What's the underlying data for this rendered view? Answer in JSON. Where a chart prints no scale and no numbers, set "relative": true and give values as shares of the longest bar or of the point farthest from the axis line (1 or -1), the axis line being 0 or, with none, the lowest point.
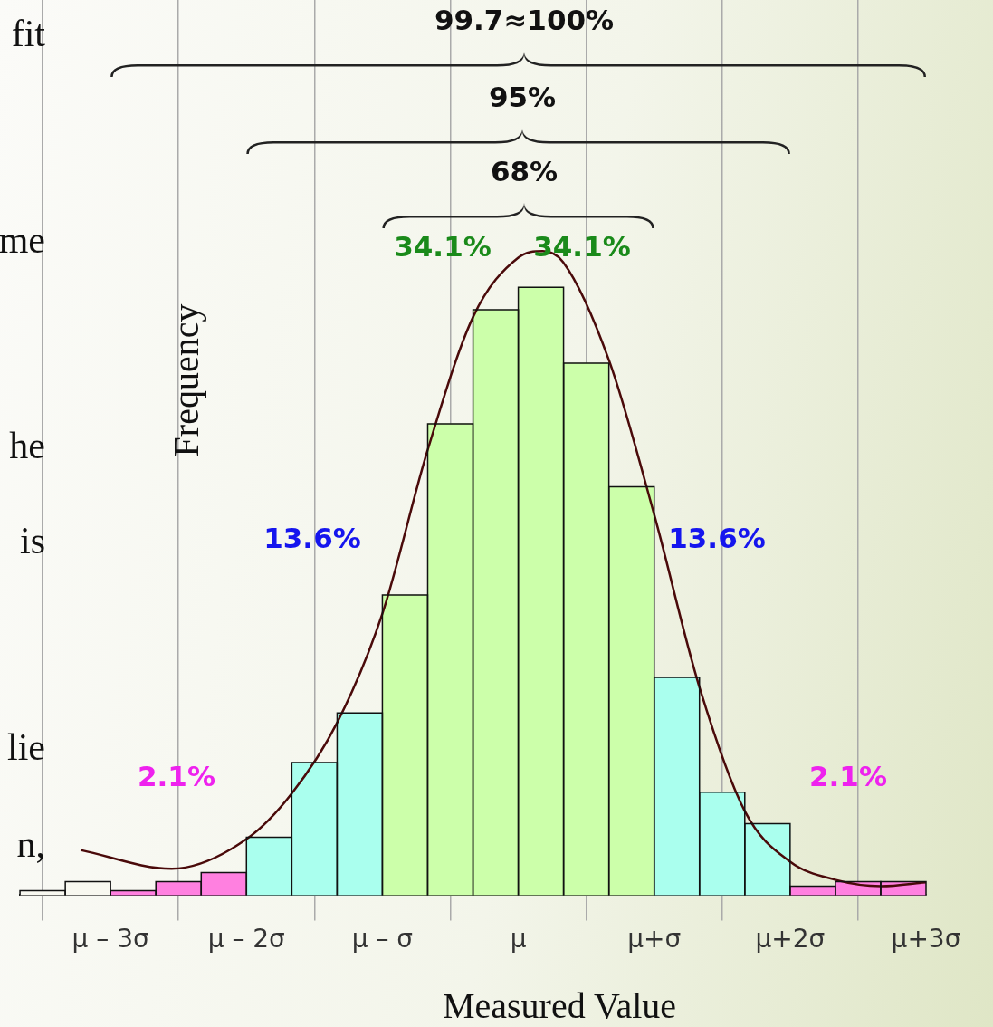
{
  "chart_data": {
    "type": "histogram",
    "relative": true,
    "xlabel": "Measured Value",
    "ylabel": "Frequency",
    "bins": [
      -3.667,
      -3.333,
      -3,
      -2.667,
      -2.333,
      -2,
      -1.667,
      -1.333,
      -1,
      -0.667,
      -0.333,
      0,
      0.333,
      0.667,
      1,
      1.333,
      1.667,
      2,
      2.333,
      2.667,
      3
    ],
    "values": [
      0.007,
      0.021,
      0.007,
      0.021,
      0.035,
      0.09,
      0.206,
      0.283,
      0.466,
      0.732,
      0.909,
      0.944,
      0.826,
      0.634,
      0.338,
      0.16,
      0.111,
      0.014,
      0.021,
      0.021
    ],
    "colors": [
      "#f8f8f0",
      "#f8f8f0",
      "#ff80e0",
      "#ff80e0",
      "#ff80e0",
      "#aaffee",
      "#aaffee",
      "#aaffee",
      "#ccffaa",
      "#ccffaa",
      "#ccffaa",
      "#ccffaa",
      "#ccffaa",
      "#ccffaa",
      "#aaffee",
      "#aaffee",
      "#aaffee",
      "#ff80e0",
      "#ff80e0",
      "#ff80e0"
    ],
    "series": [
      {
        "type": "line",
        "color": "#4a0a0a",
        "x": [
          -3.22,
          -2.55,
          -2,
          -1.67,
          -1.33,
          -1,
          -0.67,
          -0.33,
          0,
          0.18,
          0.33,
          0.67,
          1,
          1.33,
          1.67,
          2,
          2.33,
          2.67,
          3
        ],
        "values": [
          0.07,
          0.041,
          0.087,
          0.157,
          0.269,
          0.437,
          0.689,
          0.899,
          0.99,
          1,
          0.983,
          0.829,
          0.591,
          0.325,
          0.129,
          0.052,
          0.024,
          0.014,
          0.02
        ]
      }
    ],
    "xlim": [
      -3.667,
      3
    ],
    "xticks": [
      {
        "value": -3,
        "label": "μ – 3σ"
      },
      {
        "value": -2,
        "label": "μ – 2σ"
      },
      {
        "value": -1,
        "label": "μ – σ"
      },
      {
        "value": 0,
        "label": "μ"
      },
      {
        "value": 1,
        "label": "μ+σ"
      },
      {
        "value": 2,
        "label": "μ+2σ"
      },
      {
        "value": 3,
        "label": "μ+3σ"
      }
    ],
    "grid": "x",
    "annotations": [
      "34.1%",
      "34.1%",
      "13.6%",
      "13.6%",
      "2.1%",
      "2.1%",
      "68%",
      "95%",
      "99.7≈100%",
      "fit",
      "me",
      "he",
      "is",
      "lie",
      "n,"
    ]
  }
}
